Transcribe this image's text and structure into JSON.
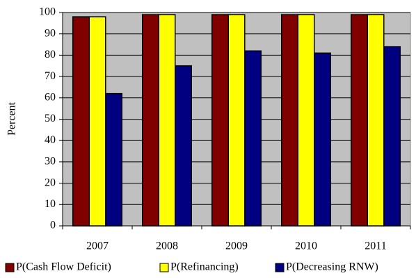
{
  "chart_data": {
    "type": "bar",
    "y_label": "Percent",
    "categories": [
      "2007",
      "2008",
      "2009",
      "2010",
      "2011"
    ],
    "series": [
      {
        "name": "P(Cash Flow Deficit)",
        "color": "#800000",
        "values": [
          98,
          99,
          99,
          99,
          99
        ]
      },
      {
        "name": "P(Refinancing)",
        "color": "#ffff00",
        "values": [
          98,
          99,
          99,
          99,
          99
        ]
      },
      {
        "name": "P(Decreasing RNW)",
        "color": "#000080",
        "values": [
          62,
          75,
          82,
          81,
          84
        ]
      }
    ],
    "ylim": [
      0,
      100
    ],
    "yticks": [
      0,
      10,
      20,
      30,
      40,
      50,
      60,
      70,
      80,
      90,
      100
    ],
    "grid": true,
    "plot_background": "#c0c0c0",
    "legend": "bottom"
  }
}
